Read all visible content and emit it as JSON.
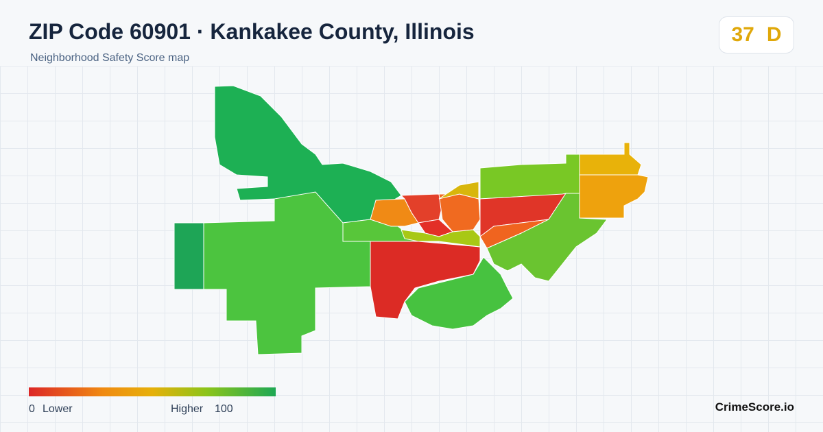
{
  "header": {
    "title": "ZIP Code 60901 · Kankakee County, Illinois",
    "subtitle": "Neighborhood Safety Score map",
    "score": "37",
    "grade": "D"
  },
  "legend": {
    "min": "0",
    "min_label": "Lower",
    "max_label": "Higher",
    "max": "100"
  },
  "brand": "CrimeScore.io"
}
